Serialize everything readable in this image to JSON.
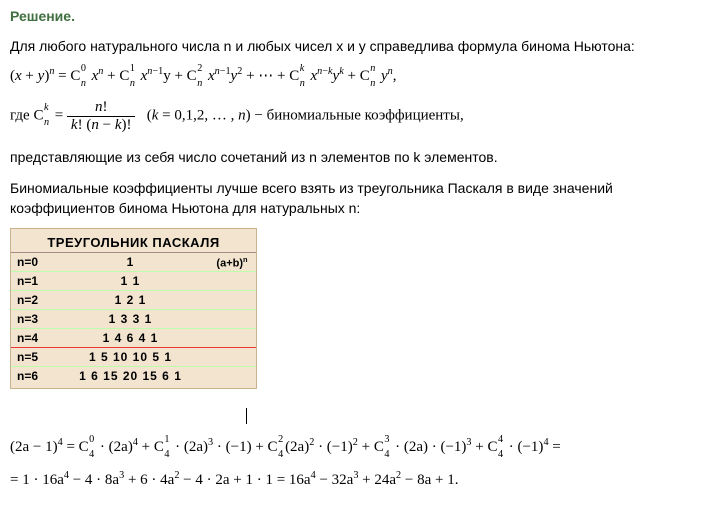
{
  "title": "Решение.",
  "intro": "Для любого натурального числа n и любых чисел x и y справедлива формула бинома Ньютона:",
  "coeff_intro": " − биномиальные коэффициенты,",
  "coeff_tail": "представляющие из себя число сочетаний из n элементов по k элементов.",
  "para2": "Биномиальные коэффициенты лучше всего взять из треугольника Паскаля в виде значений коэффициентов бинома Ньютона для натуральных n:",
  "pascal": {
    "title": "ТРЕУГОЛЬНИК ПАСКАЛЯ",
    "subtitle": "(a+b)",
    "rows": [
      {
        "label": "n=0",
        "numbers": "1"
      },
      {
        "label": "n=1",
        "numbers": "1   1"
      },
      {
        "label": "n=2",
        "numbers": "1   2   1"
      },
      {
        "label": "n=3",
        "numbers": "1   3   3   1"
      },
      {
        "label": "n=4",
        "numbers": "1   4   6   4   1"
      },
      {
        "label": "n=5",
        "numbers": "1   5  10  10   5   1"
      },
      {
        "label": "n=6",
        "numbers": "1   6  15  20  15   6   1"
      }
    ],
    "highlight_row_index": 4
  },
  "colors": {
    "title": "#407040",
    "pascal_bg": "#f2e4cf",
    "pascal_border": "#c9b28e",
    "highlight": "#e33"
  }
}
